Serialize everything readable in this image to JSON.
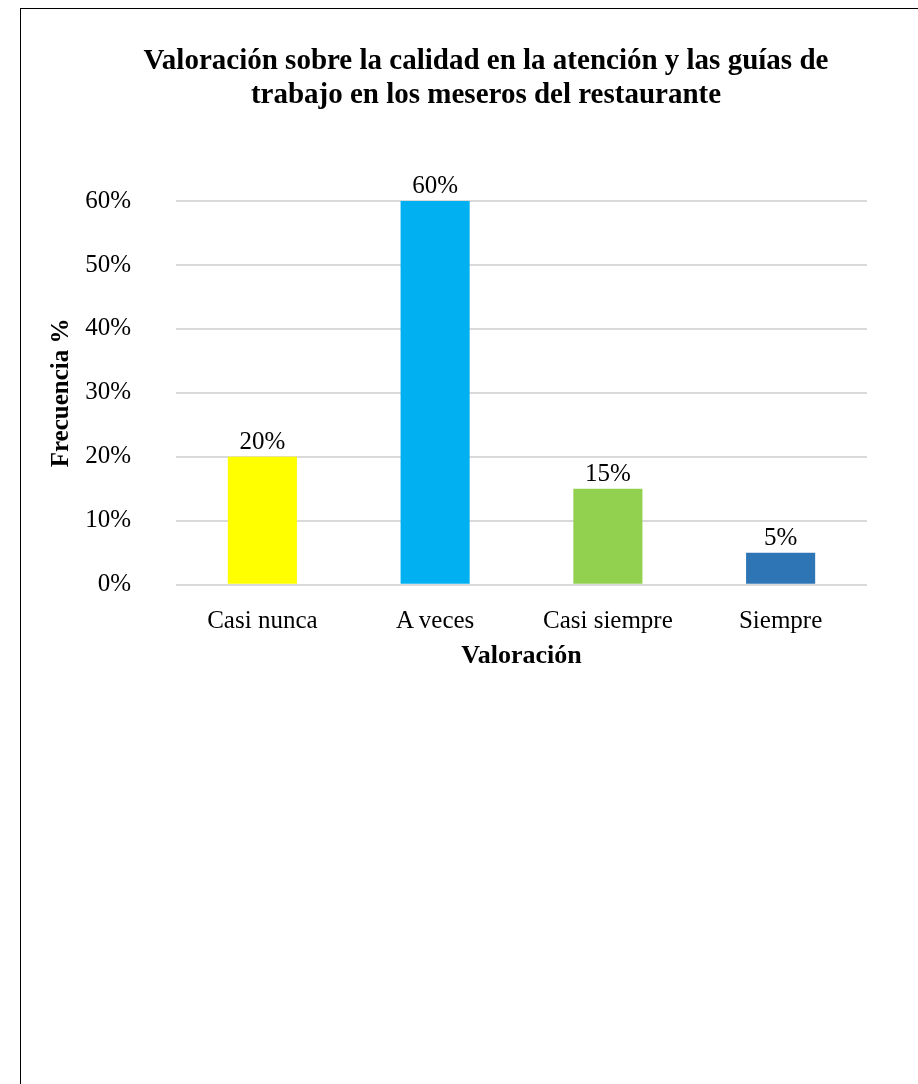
{
  "chart_data": {
    "type": "bar",
    "title": "Valoración sobre la calidad en la atención y las guías de trabajo en los meseros del restaurante",
    "xlabel": "Valoración",
    "ylabel": "Frecuencia %",
    "categories": [
      "Casi nunca",
      "A veces",
      "Casi siempre",
      "Siempre"
    ],
    "values": [
      20,
      60,
      15,
      5
    ],
    "colors": [
      "#ffff00",
      "#00b0f0",
      "#92d050",
      "#2e75b6"
    ],
    "value_labels": [
      "20%",
      "60%",
      "15%",
      "5%"
    ],
    "ylim": [
      0,
      60
    ],
    "yticks": [
      {
        "value": 0,
        "label": "0%"
      },
      {
        "value": 10,
        "label": "10%"
      },
      {
        "value": 20,
        "label": "20%"
      },
      {
        "value": 30,
        "label": "30%"
      },
      {
        "value": 40,
        "label": "40%"
      },
      {
        "value": 50,
        "label": "50%"
      },
      {
        "value": 60,
        "label": "60%"
      }
    ],
    "grid": "y",
    "legend": false
  }
}
